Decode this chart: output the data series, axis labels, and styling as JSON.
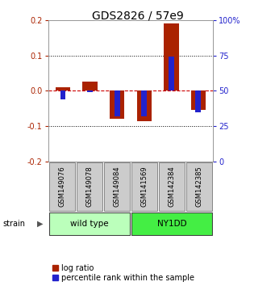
{
  "title": "GDS2826 / 57e9",
  "samples": [
    "GSM149076",
    "GSM149078",
    "GSM149084",
    "GSM141569",
    "GSM142384",
    "GSM142385"
  ],
  "log_ratio": [
    0.01,
    0.025,
    -0.08,
    -0.085,
    0.19,
    -0.055
  ],
  "percentile_rank_pct": [
    44,
    49,
    32,
    32,
    74,
    35
  ],
  "ylim": [
    -0.2,
    0.2
  ],
  "yticks_left": [
    -0.2,
    -0.1,
    0.0,
    0.1,
    0.2
  ],
  "yticks_right_labels": [
    "0",
    "25",
    "50",
    "75",
    "100%"
  ],
  "yticks_right_vals": [
    0,
    25,
    50,
    75,
    100
  ],
  "bar_width": 0.55,
  "pct_bar_width": 0.2,
  "log_ratio_color": "#aa2200",
  "percentile_color": "#2222cc",
  "zero_line_color": "#cc0000",
  "grid_color": "#000000",
  "wild_type_color": "#bbffbb",
  "ny1dd_color": "#44ee44",
  "sample_box_color": "#cccccc",
  "background_color": "#ffffff",
  "title_fontsize": 10,
  "tick_fontsize": 7,
  "legend_fontsize": 7
}
